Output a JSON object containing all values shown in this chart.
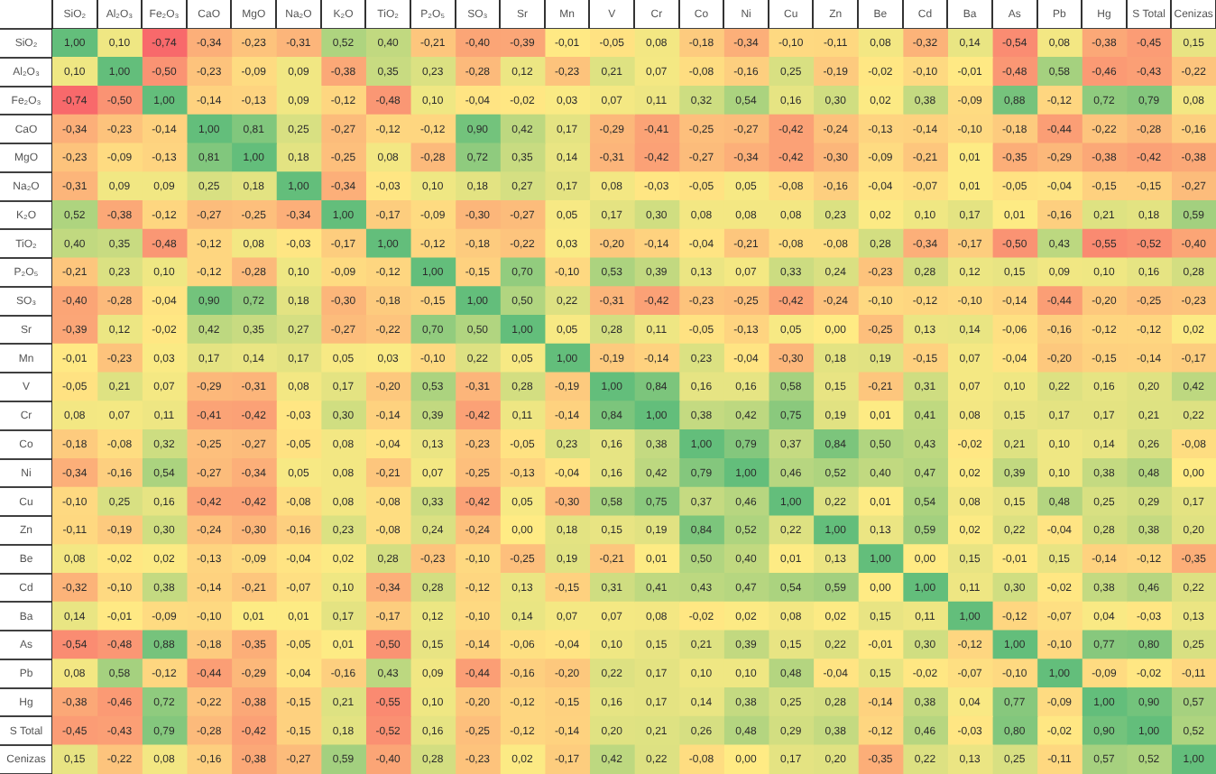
{
  "chart_data": {
    "type": "heatmap",
    "categories": [
      "SiO₂",
      "Al₂O₃",
      "Fe₂O₃",
      "CaO",
      "MgO",
      "Na₂O",
      "K₂O",
      "TiO₂",
      "P₂O₅",
      "SO₃",
      "Sr",
      "Mn",
      "V",
      "Cr",
      "Co",
      "Ni",
      "Cu",
      "Zn",
      "Be",
      "Cd",
      "Ba",
      "As",
      "Pb",
      "Hg",
      "S Total",
      "Cenizas"
    ],
    "y_categories": [
      "SiO₂",
      "Al₂O₃",
      "Fe₂O₃",
      "CaO",
      "MgO",
      "Na₂O",
      "K₂O",
      "TiO₂",
      "P₂O₅",
      "SO₃",
      "Sr",
      "Mn",
      "V",
      "Cr",
      "Co",
      "Ni",
      "Cu",
      "Zn",
      "Be",
      "Cd",
      "Ba",
      "As",
      "Pb",
      "Hg",
      "S Total",
      "Cenizas"
    ],
    "cells": [
      [
        1.0,
        0.1,
        -0.74,
        -0.34,
        -0.23,
        -0.31,
        0.52,
        0.4,
        -0.21,
        -0.4,
        -0.39,
        -0.01,
        -0.05,
        0.08,
        -0.18,
        -0.34,
        -0.1,
        -0.11,
        0.08,
        -0.32,
        0.14,
        -0.54,
        0.08,
        -0.38,
        -0.45,
        0.15
      ],
      [
        0.1,
        1.0,
        -0.5,
        -0.23,
        -0.09,
        0.09,
        -0.38,
        0.35,
        0.23,
        -0.28,
        0.12,
        -0.23,
        0.21,
        0.07,
        -0.08,
        -0.16,
        0.25,
        -0.19,
        -0.02,
        -0.1,
        -0.01,
        -0.48,
        0.58,
        -0.46,
        -0.43,
        -0.22
      ],
      [
        -0.74,
        -0.5,
        1.0,
        -0.14,
        -0.13,
        0.09,
        -0.12,
        -0.48,
        0.1,
        -0.04,
        -0.02,
        0.03,
        0.07,
        0.11,
        0.32,
        0.54,
        0.16,
        0.3,
        0.02,
        0.38,
        -0.09,
        0.88,
        -0.12,
        0.72,
        0.79,
        0.08
      ],
      [
        -0.34,
        -0.23,
        -0.14,
        1.0,
        0.81,
        0.25,
        -0.27,
        -0.12,
        -0.12,
        0.9,
        0.42,
        0.17,
        -0.29,
        -0.41,
        -0.25,
        -0.27,
        -0.42,
        -0.24,
        -0.13,
        -0.14,
        -0.1,
        -0.18,
        -0.44,
        -0.22,
        -0.28,
        -0.16
      ],
      [
        -0.23,
        -0.09,
        -0.13,
        0.81,
        1.0,
        0.18,
        -0.25,
        0.08,
        -0.28,
        0.72,
        0.35,
        0.14,
        -0.31,
        -0.42,
        -0.27,
        -0.34,
        -0.42,
        -0.3,
        -0.09,
        -0.21,
        0.01,
        -0.35,
        -0.29,
        -0.38,
        -0.42,
        -0.38
      ],
      [
        -0.31,
        0.09,
        0.09,
        0.25,
        0.18,
        1.0,
        -0.34,
        -0.03,
        0.1,
        0.18,
        0.27,
        0.17,
        0.08,
        -0.03,
        -0.05,
        0.05,
        -0.08,
        -0.16,
        -0.04,
        -0.07,
        0.01,
        -0.05,
        -0.04,
        -0.15,
        -0.15,
        -0.27
      ],
      [
        0.52,
        -0.38,
        -0.12,
        -0.27,
        -0.25,
        -0.34,
        1.0,
        -0.17,
        -0.09,
        -0.3,
        -0.27,
        0.05,
        0.17,
        0.3,
        0.08,
        0.08,
        0.08,
        0.23,
        0.02,
        0.1,
        0.17,
        0.01,
        -0.16,
        0.21,
        0.18,
        0.59
      ],
      [
        0.4,
        0.35,
        -0.48,
        -0.12,
        0.08,
        -0.03,
        -0.17,
        1.0,
        -0.12,
        -0.18,
        -0.22,
        0.03,
        -0.2,
        -0.14,
        -0.04,
        -0.21,
        -0.08,
        -0.08,
        0.28,
        -0.34,
        -0.17,
        -0.5,
        0.43,
        -0.55,
        -0.52,
        -0.4
      ],
      [
        -0.21,
        0.23,
        0.1,
        -0.12,
        -0.28,
        0.1,
        -0.09,
        -0.12,
        1.0,
        -0.15,
        0.7,
        -0.1,
        0.53,
        0.39,
        0.13,
        0.07,
        0.33,
        0.24,
        -0.23,
        0.28,
        0.12,
        0.15,
        0.09,
        0.1,
        0.16,
        0.28
      ],
      [
        -0.4,
        -0.28,
        -0.04,
        0.9,
        0.72,
        0.18,
        -0.3,
        -0.18,
        -0.15,
        1.0,
        0.5,
        0.22,
        -0.31,
        -0.42,
        -0.23,
        -0.25,
        -0.42,
        -0.24,
        -0.1,
        -0.12,
        -0.1,
        -0.14,
        -0.44,
        -0.2,
        -0.25,
        -0.23
      ],
      [
        -0.39,
        0.12,
        -0.02,
        0.42,
        0.35,
        0.27,
        -0.27,
        -0.22,
        0.7,
        0.5,
        1.0,
        0.05,
        0.28,
        0.11,
        -0.05,
        -0.13,
        0.05,
        0.0,
        -0.25,
        0.13,
        0.14,
        -0.06,
        -0.16,
        -0.12,
        -0.12,
        0.02
      ],
      [
        -0.01,
        -0.23,
        0.03,
        0.17,
        0.14,
        0.17,
        0.05,
        0.03,
        -0.1,
        0.22,
        0.05,
        1.0,
        -0.19,
        -0.14,
        0.23,
        -0.04,
        -0.3,
        0.18,
        0.19,
        -0.15,
        0.07,
        -0.04,
        -0.2,
        -0.15,
        -0.14,
        -0.17
      ],
      [
        -0.05,
        0.21,
        0.07,
        -0.29,
        -0.31,
        0.08,
        0.17,
        -0.2,
        0.53,
        -0.31,
        0.28,
        -0.19,
        1.0,
        0.84,
        0.16,
        0.16,
        0.58,
        0.15,
        -0.21,
        0.31,
        0.07,
        0.1,
        0.22,
        0.16,
        0.2,
        0.42
      ],
      [
        0.08,
        0.07,
        0.11,
        -0.41,
        -0.42,
        -0.03,
        0.3,
        -0.14,
        0.39,
        -0.42,
        0.11,
        -0.14,
        0.84,
        1.0,
        0.38,
        0.42,
        0.75,
        0.19,
        0.01,
        0.41,
        0.08,
        0.15,
        0.17,
        0.17,
        0.21,
        0.22
      ],
      [
        -0.18,
        -0.08,
        0.32,
        -0.25,
        -0.27,
        -0.05,
        0.08,
        -0.04,
        0.13,
        -0.23,
        -0.05,
        0.23,
        0.16,
        0.38,
        1.0,
        0.79,
        0.37,
        0.84,
        0.5,
        0.43,
        -0.02,
        0.21,
        0.1,
        0.14,
        0.26,
        -0.08
      ],
      [
        -0.34,
        -0.16,
        0.54,
        -0.27,
        -0.34,
        0.05,
        0.08,
        -0.21,
        0.07,
        -0.25,
        -0.13,
        -0.04,
        0.16,
        0.42,
        0.79,
        1.0,
        0.46,
        0.52,
        0.4,
        0.47,
        0.02,
        0.39,
        0.1,
        0.38,
        0.48,
        0.0
      ],
      [
        -0.1,
        0.25,
        0.16,
        -0.42,
        -0.42,
        -0.08,
        0.08,
        -0.08,
        0.33,
        -0.42,
        0.05,
        -0.3,
        0.58,
        0.75,
        0.37,
        0.46,
        1.0,
        0.22,
        0.01,
        0.54,
        0.08,
        0.15,
        0.48,
        0.25,
        0.29,
        0.17
      ],
      [
        -0.11,
        -0.19,
        0.3,
        -0.24,
        -0.3,
        -0.16,
        0.23,
        -0.08,
        0.24,
        -0.24,
        0.0,
        0.18,
        0.15,
        0.19,
        0.84,
        0.52,
        0.22,
        1.0,
        0.13,
        0.59,
        0.02,
        0.22,
        -0.04,
        0.28,
        0.38,
        0.2
      ],
      [
        0.08,
        -0.02,
        0.02,
        -0.13,
        -0.09,
        -0.04,
        0.02,
        0.28,
        -0.23,
        -0.1,
        -0.25,
        0.19,
        -0.21,
        0.01,
        0.5,
        0.4,
        0.01,
        0.13,
        1.0,
        0.0,
        0.15,
        -0.01,
        0.15,
        -0.14,
        -0.12,
        -0.35
      ],
      [
        -0.32,
        -0.1,
        0.38,
        -0.14,
        -0.21,
        -0.07,
        0.1,
        -0.34,
        0.28,
        -0.12,
        0.13,
        -0.15,
        0.31,
        0.41,
        0.43,
        0.47,
        0.54,
        0.59,
        0.0,
        1.0,
        0.11,
        0.3,
        -0.02,
        0.38,
        0.46,
        0.22
      ],
      [
        0.14,
        -0.01,
        -0.09,
        -0.1,
        0.01,
        0.01,
        0.17,
        -0.17,
        0.12,
        -0.1,
        0.14,
        0.07,
        0.07,
        0.08,
        -0.02,
        0.02,
        0.08,
        0.02,
        0.15,
        0.11,
        1.0,
        -0.12,
        -0.07,
        0.04,
        -0.03,
        0.13
      ],
      [
        -0.54,
        -0.48,
        0.88,
        -0.18,
        -0.35,
        -0.05,
        0.01,
        -0.5,
        0.15,
        -0.14,
        -0.06,
        -0.04,
        0.1,
        0.15,
        0.21,
        0.39,
        0.15,
        0.22,
        -0.01,
        0.3,
        -0.12,
        1.0,
        -0.1,
        0.77,
        0.8,
        0.25
      ],
      [
        0.08,
        0.58,
        -0.12,
        -0.44,
        -0.29,
        -0.04,
        -0.16,
        0.43,
        0.09,
        -0.44,
        -0.16,
        -0.2,
        0.22,
        0.17,
        0.1,
        0.1,
        0.48,
        -0.04,
        0.15,
        -0.02,
        -0.07,
        -0.1,
        1.0,
        -0.09,
        -0.02,
        -0.11
      ],
      [
        -0.38,
        -0.46,
        0.72,
        -0.22,
        -0.38,
        -0.15,
        0.21,
        -0.55,
        0.1,
        -0.2,
        -0.12,
        -0.15,
        0.16,
        0.17,
        0.14,
        0.38,
        0.25,
        0.28,
        -0.14,
        0.38,
        0.04,
        0.77,
        -0.09,
        1.0,
        0.9,
        0.57
      ],
      [
        -0.45,
        -0.43,
        0.79,
        -0.28,
        -0.42,
        -0.15,
        0.18,
        -0.52,
        0.16,
        -0.25,
        -0.12,
        -0.14,
        0.2,
        0.21,
        0.26,
        0.48,
        0.29,
        0.38,
        -0.12,
        0.46,
        -0.03,
        0.8,
        -0.02,
        0.9,
        1.0,
        0.52
      ],
      [
        0.15,
        -0.22,
        0.08,
        -0.16,
        -0.38,
        -0.27,
        0.59,
        -0.4,
        0.28,
        -0.23,
        0.02,
        -0.17,
        0.42,
        0.22,
        -0.08,
        0.0,
        0.17,
        0.2,
        -0.35,
        0.22,
        0.13,
        0.25,
        -0.11,
        0.57,
        0.52,
        1.0
      ]
    ],
    "cell_labels": [
      [
        "1,00",
        "0,10",
        "-0,74",
        "-0,34",
        "-0,23",
        "-0,31",
        "0,52",
        "0,40",
        "-0,21",
        "-0,40",
        "-0,39",
        "-0,01",
        "-0,05",
        "0,08",
        "-0,18",
        "-0,34",
        "-0,10",
        "-0,11",
        "0,08",
        "-0,32",
        "0,14",
        "-0,54",
        "0,08",
        "-0,38",
        "-0,45",
        "0,15"
      ],
      [
        "0,10",
        "1,00",
        "-0,50",
        "-0,23",
        "-0,09",
        "0,09",
        "-0,38",
        "0,35",
        "0,23",
        "-0,28",
        "0,12",
        "-0,23",
        "0,21",
        "0,07",
        "-0,08",
        "-0,16",
        "0,25",
        "-0,19",
        "-0,02",
        "-0,10",
        "-0,01",
        "-0,48",
        "0,58",
        "-0,46",
        "-0,43",
        "-0,22"
      ],
      [
        "-0,74",
        "-0,50",
        "1,00",
        "-0,14",
        "-0,13",
        "0,09",
        "-0,12",
        "-0,48",
        "0,10",
        "-0,04",
        "-0,02",
        "0,03",
        "0,07",
        "0,11",
        "0,32",
        "0,54",
        "0,16",
        "0,30",
        "0,02",
        "0,38",
        "-0,09",
        "0,88",
        "-0,12",
        "0,72",
        "0,79",
        "0,08"
      ],
      [
        "-0,34",
        "-0,23",
        "-0,14",
        "1,00",
        "0,81",
        "0,25",
        "-0,27",
        "-0,12",
        "-0,12",
        "0,90",
        "0,42",
        "0,17",
        "-0,29",
        "-0,41",
        "-0,25",
        "-0,27",
        "-0,42",
        "-0,24",
        "-0,13",
        "-0,14",
        "-0,10",
        "-0,18",
        "-0,44",
        "-0,22",
        "-0,28",
        "-0,16"
      ],
      [
        "-0,23",
        "-0,09",
        "-0,13",
        "0,81",
        "1,00",
        "0,18",
        "-0,25",
        "0,08",
        "-0,28",
        "0,72",
        "0,35",
        "0,14",
        "-0,31",
        "-0,42",
        "-0,27",
        "-0,34",
        "-0,42",
        "-0,30",
        "-0,09",
        "-0,21",
        "0,01",
        "-0,35",
        "-0,29",
        "-0,38",
        "-0,42",
        "-0,38"
      ],
      [
        "-0,31",
        "0,09",
        "0,09",
        "0,25",
        "0,18",
        "1,00",
        "-0,34",
        "-0,03",
        "0,10",
        "0,18",
        "0,27",
        "0,17",
        "0,08",
        "-0,03",
        "-0,05",
        "0,05",
        "-0,08",
        "-0,16",
        "-0,04",
        "-0,07",
        "0,01",
        "-0,05",
        "-0,04",
        "-0,15",
        "-0,15",
        "-0,27"
      ],
      [
        "0,52",
        "-0,38",
        "-0,12",
        "-0,27",
        "-0,25",
        "-0,34",
        "1,00",
        "-0,17",
        "-0,09",
        "-0,30",
        "-0,27",
        "0,05",
        "0,17",
        "0,30",
        "0,08",
        "0,08",
        "0,08",
        "0,23",
        "0,02",
        "0,10",
        "0,17",
        "0,01",
        "-0,16",
        "0,21",
        "0,18",
        "0,59"
      ],
      [
        "0,40",
        "0,35",
        "-0,48",
        "-0,12",
        "0,08",
        "-0,03",
        "-0,17",
        "1,00",
        "-0,12",
        "-0,18",
        "-0,22",
        "0,03",
        "-0,20",
        "-0,14",
        "-0,04",
        "-0,21",
        "-0,08",
        "-0,08",
        "0,28",
        "-0,34",
        "-0,17",
        "-0,50",
        "0,43",
        "-0,55",
        "-0,52",
        "-0,40"
      ],
      [
        "-0,21",
        "0,23",
        "0,10",
        "-0,12",
        "-0,28",
        "0,10",
        "-0,09",
        "-0,12",
        "1,00",
        "-0,15",
        "0,70",
        "-0,10",
        "0,53",
        "0,39",
        "0,13",
        "0,07",
        "0,33",
        "0,24",
        "-0,23",
        "0,28",
        "0,12",
        "0,15",
        "0,09",
        "0,10",
        "0,16",
        "0,28"
      ],
      [
        "-0,40",
        "-0,28",
        "-0,04",
        "0,90",
        "0,72",
        "0,18",
        "-0,30",
        "-0,18",
        "-0,15",
        "1,00",
        "0,50",
        "0,22",
        "-0,31",
        "-0,42",
        "-0,23",
        "-0,25",
        "-0,42",
        "-0,24",
        "-0,10",
        "-0,12",
        "-0,10",
        "-0,14",
        "-0,44",
        "-0,20",
        "-0,25",
        "-0,23"
      ],
      [
        "-0,39",
        "0,12",
        "-0,02",
        "0,42",
        "0,35",
        "0,27",
        "-0,27",
        "-0,22",
        "0,70",
        "0,50",
        "1,00",
        "0,05",
        "0,28",
        "0,11",
        "-0,05",
        "-0,13",
        "0,05",
        "0,00",
        "-0,25",
        "0,13",
        "0,14",
        "-0,06",
        "-0,16",
        "-0,12",
        "-0,12",
        "0,02"
      ],
      [
        "-0,01",
        "-0,23",
        "0,03",
        "0,17",
        "0,14",
        "0,17",
        "0,05",
        "0,03",
        "-0,10",
        "0,22",
        "0,05",
        "1,00",
        "-0,19",
        "-0,14",
        "0,23",
        "-0,04",
        "-0,30",
        "0,18",
        "0,19",
        "-0,15",
        "0,07",
        "-0,04",
        "-0,20",
        "-0,15",
        "-0,14",
        "-0,17"
      ],
      [
        "-0,05",
        "0,21",
        "0,07",
        "-0,29",
        "-0,31",
        "0,08",
        "0,17",
        "-0,20",
        "0,53",
        "-0,31",
        "0,28",
        "-0,19",
        "1,00",
        "0,84",
        "0,16",
        "0,16",
        "0,58",
        "0,15",
        "-0,21",
        "0,31",
        "0,07",
        "0,10",
        "0,22",
        "0,16",
        "0,20",
        "0,42"
      ],
      [
        "0,08",
        "0,07",
        "0,11",
        "-0,41",
        "-0,42",
        "-0,03",
        "0,30",
        "-0,14",
        "0,39",
        "-0,42",
        "0,11",
        "-0,14",
        "0,84",
        "1,00",
        "0,38",
        "0,42",
        "0,75",
        "0,19",
        "0,01",
        "0,41",
        "0,08",
        "0,15",
        "0,17",
        "0,17",
        "0,21",
        "0,22"
      ],
      [
        "-0,18",
        "-0,08",
        "0,32",
        "-0,25",
        "-0,27",
        "-0,05",
        "0,08",
        "-0,04",
        "0,13",
        "-0,23",
        "-0,05",
        "0,23",
        "0,16",
        "0,38",
        "1,00",
        "0,79",
        "0,37",
        "0,84",
        "0,50",
        "0,43",
        "-0,02",
        "0,21",
        "0,10",
        "0,14",
        "0,26",
        "-0,08"
      ],
      [
        "-0,34",
        "-0,16",
        "0,54",
        "-0,27",
        "-0,34",
        "0,05",
        "0,08",
        "-0,21",
        "0,07",
        "-0,25",
        "-0,13",
        "-0,04",
        "0,16",
        "0,42",
        "0,79",
        "1,00",
        "0,46",
        "0,52",
        "0,40",
        "0,47",
        "0,02",
        "0,39",
        "0,10",
        "0,38",
        "0,48",
        "0,00"
      ],
      [
        "-0,10",
        "0,25",
        "0,16",
        "-0,42",
        "-0,42",
        "-0,08",
        "0,08",
        "-0,08",
        "0,33",
        "-0,42",
        "0,05",
        "-0,30",
        "0,58",
        "0,75",
        "0,37",
        "0,46",
        "1,00",
        "0,22",
        "0,01",
        "0,54",
        "0,08",
        "0,15",
        "0,48",
        "0,25",
        "0,29",
        "0,17"
      ],
      [
        "-0,11",
        "-0,19",
        "0,30",
        "-0,24",
        "-0,30",
        "-0,16",
        "0,23",
        "-0,08",
        "0,24",
        "-0,24",
        "0,00",
        "0,18",
        "0,15",
        "0,19",
        "0,84",
        "0,52",
        "0,22",
        "1,00",
        "0,13",
        "0,59",
        "0,02",
        "0,22",
        "-0,04",
        "0,28",
        "0,38",
        "0,20"
      ],
      [
        "0,08",
        "-0,02",
        "0,02",
        "-0,13",
        "-0,09",
        "-0,04",
        "0,02",
        "0,28",
        "-0,23",
        "-0,10",
        "-0,25",
        "0,19",
        "-0,21",
        "0,01",
        "0,50",
        "0,40",
        "0,01",
        "0,13",
        "1,00",
        "0,00",
        "0,15",
        "-0,01",
        "0,15",
        "-0,14",
        "-0,12",
        "-0,35"
      ],
      [
        "-0,32",
        "-0,10",
        "0,38",
        "-0,14",
        "-0,21",
        "-0,07",
        "0,10",
        "-0,34",
        "0,28",
        "-0,12",
        "0,13",
        "-0,15",
        "0,31",
        "0,41",
        "0,43",
        "0,47",
        "0,54",
        "0,59",
        "0,00",
        "1,00",
        "0,11",
        "0,30",
        "-0,02",
        "0,38",
        "0,46",
        "0,22"
      ],
      [
        "0,14",
        "-0,01",
        "-0,09",
        "-0,10",
        "0,01",
        "0,01",
        "0,17",
        "-0,17",
        "0,12",
        "-0,10",
        "0,14",
        "0,07",
        "0,07",
        "0,08",
        "-0,02",
        "0,02",
        "0,08",
        "0,02",
        "0,15",
        "0,11",
        "1,00",
        "-0,12",
        "-0,07",
        "0,04",
        "-0,03",
        "0,13"
      ],
      [
        "-0,54",
        "-0,48",
        "0,88",
        "-0,18",
        "-0,35",
        "-0,05",
        "0,01",
        "-0,50",
        "0,15",
        "-0,14",
        "-0,06",
        "-0,04",
        "0,10",
        "0,15",
        "0,21",
        "0,39",
        "0,15",
        "0,22",
        "-0,01",
        "0,30",
        "-0,12",
        "1,00",
        "-0,10",
        "0,77",
        "0,80",
        "0,25"
      ],
      [
        "0,08",
        "0,58",
        "-0,12",
        "-0,44",
        "-0,29",
        "-0,04",
        "-0,16",
        "0,43",
        "0,09",
        "-0,44",
        "-0,16",
        "-0,20",
        "0,22",
        "0,17",
        "0,10",
        "0,10",
        "0,48",
        "-0,04",
        "0,15",
        "-0,02",
        "-0,07",
        "-0,10",
        "1,00",
        "-0,09",
        "-0,02",
        "-0,11"
      ],
      [
        "-0,38",
        "-0,46",
        "0,72",
        "-0,22",
        "-0,38",
        "-0,15",
        "0,21",
        "-0,55",
        "0,10",
        "-0,20",
        "-0,12",
        "-0,15",
        "0,16",
        "0,17",
        "0,14",
        "0,38",
        "0,25",
        "0,28",
        "-0,14",
        "0,38",
        "0,04",
        "0,77",
        "-0,09",
        "1,00",
        "0,90",
        "0,57"
      ],
      [
        "-0,45",
        "-0,43",
        "0,79",
        "-0,28",
        "-0,42",
        "-0,15",
        "0,18",
        "-0,52",
        "0,16",
        "-0,25",
        "-0,12",
        "-0,14",
        "0,20",
        "0,21",
        "0,26",
        "0,48",
        "0,29",
        "0,38",
        "-0,12",
        "0,46",
        "-0,03",
        "0,80",
        "-0,02",
        "0,90",
        "1,00",
        "0,52"
      ],
      [
        "0,15",
        "-0,22",
        "0,08",
        "-0,16",
        "-0,38",
        "-0,27",
        "0,59",
        "-0,40",
        "0,28",
        "-0,23",
        "0,02",
        "-0,17",
        "0,42",
        "0,22",
        "-0,08",
        "0,00",
        "0,17",
        "0,20",
        "-0,35",
        "0,22",
        "0,13",
        "0,25",
        "-0,11",
        "0,57",
        "0,52",
        "1,00"
      ]
    ]
  }
}
